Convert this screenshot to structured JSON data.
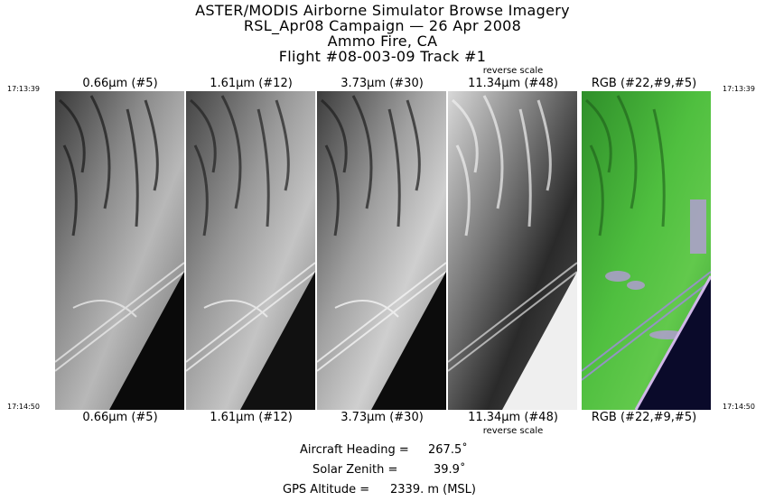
{
  "header": {
    "line1": "ASTER/MODIS Airborne Simulator Browse Imagery",
    "line2": "RSL_Apr08 Campaign — 26 Apr 2008",
    "line3": "Ammo Fire, CA",
    "line4": "Flight #08-003-09 Track #1"
  },
  "times": {
    "start": "17:13:39",
    "end": "17:14:50"
  },
  "panels": [
    {
      "label": "0.66µm (#5)",
      "note": "",
      "style": "gray-a"
    },
    {
      "label": "1.61µm (#12)",
      "note": "",
      "style": "gray-b"
    },
    {
      "label": "3.73µm (#30)",
      "note": "",
      "style": "gray-c"
    },
    {
      "label": "11.34µm (#48)",
      "note": "reverse scale",
      "style": "gray-rev"
    },
    {
      "label": "RGB (#22,#9,#5)",
      "note": "",
      "style": "rgb"
    }
  ],
  "footer": {
    "heading_label": "Aircraft Heading =",
    "heading_value": "267.5˚",
    "zenith_label": "Solar Zenith =",
    "zenith_value": "39.9˚",
    "altitude_label": "GPS Altitude =",
    "altitude_value": "2339. m (MSL)"
  }
}
